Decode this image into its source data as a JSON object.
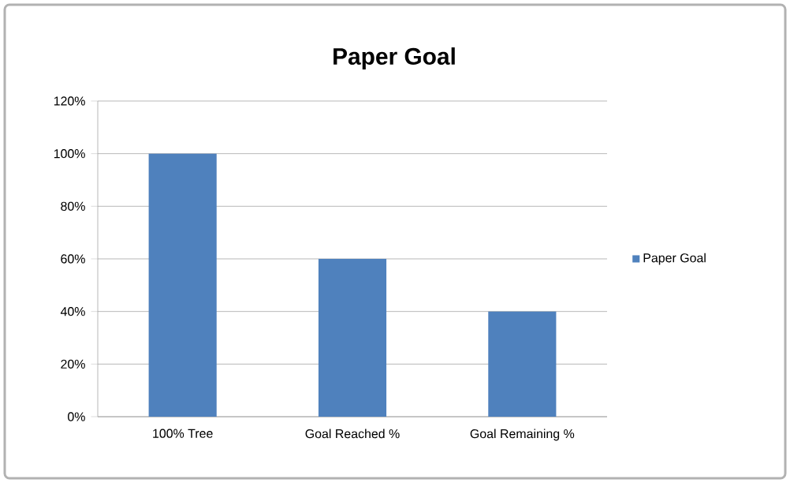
{
  "chart_data": {
    "type": "bar",
    "title": "Paper Goal",
    "categories": [
      "100% Tree",
      "Goal Reached %",
      "Goal Remaining %"
    ],
    "series": [
      {
        "name": "Paper Goal",
        "color": "#4f81bd",
        "values": [
          100,
          60,
          40
        ]
      }
    ],
    "ylim": [
      0,
      120
    ],
    "yticks": [
      {
        "value": 0,
        "label": "0%"
      },
      {
        "value": 20,
        "label": "20%"
      },
      {
        "value": 40,
        "label": "40%"
      },
      {
        "value": 60,
        "label": "60%"
      },
      {
        "value": 80,
        "label": "80%"
      },
      {
        "value": 100,
        "label": "100%"
      },
      {
        "value": 120,
        "label": "120%"
      }
    ],
    "grid": "y",
    "legend": "right"
  }
}
